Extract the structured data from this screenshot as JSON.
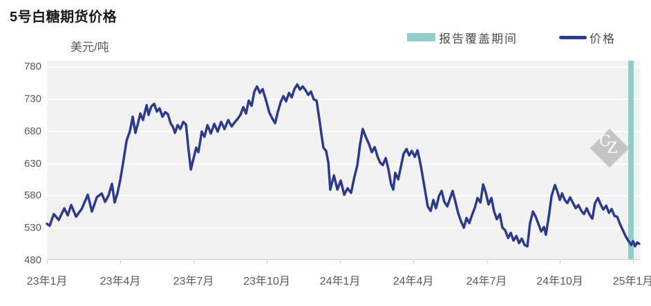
{
  "title": "5号白糖期货价格",
  "y_unit_label": "美元/吨",
  "legend": {
    "items": [
      {
        "label": "报告覆盖期间",
        "type": "bar",
        "color": "#8ecfc9"
      },
      {
        "label": "价格",
        "type": "line",
        "color": "#2b3a8d"
      }
    ]
  },
  "watermark": {
    "letter_c": "C",
    "letter_z": "Z"
  },
  "colors": {
    "line": "#2b3a8d",
    "coverage_band": "#8ecfc9",
    "plot_background": "#f2f2f2",
    "gridline": "#ffffff",
    "axis": "#c9c9c9",
    "tick_text": "#595959",
    "title_text": "#1a1a1a",
    "watermark": "#c5c5c5"
  },
  "chart_data": {
    "type": "line",
    "title": "5号白糖期货价格",
    "xlabel": "",
    "ylabel": "美元/吨",
    "grid": "horizontal-white-on-gray",
    "legend_position": "top-right",
    "x_axis": {
      "unit": "months since 2023-01",
      "range": [
        0,
        24.28
      ],
      "tick_positions": [
        0,
        3,
        6,
        9,
        12,
        15,
        18,
        21,
        24
      ],
      "tick_labels": [
        "23年1月",
        "23年4月",
        "23年7月",
        "23年10月",
        "24年1月",
        "24年4月",
        "24年7月",
        "24年10月",
        "25年1月"
      ]
    },
    "y_axis": {
      "ticks": [
        480,
        530,
        580,
        630,
        680,
        730,
        780
      ],
      "range": [
        480,
        790
      ]
    },
    "coverage_band": {
      "label": "报告覆盖期间",
      "x_start": 23.8,
      "x_end": 24.03
    },
    "series": [
      {
        "name": "价格",
        "color": "#2b3a8d",
        "points": [
          [
            0,
            537
          ],
          [
            0.11,
            534
          ],
          [
            0.28,
            552
          ],
          [
            0.48,
            543
          ],
          [
            0.71,
            561
          ],
          [
            0.85,
            550
          ],
          [
            0.99,
            566
          ],
          [
            1.19,
            548
          ],
          [
            1.42,
            560
          ],
          [
            1.67,
            582
          ],
          [
            1.84,
            556
          ],
          [
            2.04,
            578
          ],
          [
            2.24,
            584
          ],
          [
            2.38,
            571
          ],
          [
            2.52,
            581
          ],
          [
            2.66,
            599
          ],
          [
            2.77,
            570
          ],
          [
            2.89,
            585
          ],
          [
            3.0,
            605
          ],
          [
            3.11,
            630
          ],
          [
            3.26,
            666
          ],
          [
            3.4,
            681
          ],
          [
            3.51,
            703
          ],
          [
            3.62,
            678
          ],
          [
            3.74,
            695
          ],
          [
            3.82,
            708
          ],
          [
            3.93,
            698
          ],
          [
            4.08,
            721
          ],
          [
            4.16,
            706
          ],
          [
            4.27,
            719
          ],
          [
            4.39,
            723
          ],
          [
            4.5,
            711
          ],
          [
            4.61,
            716
          ],
          [
            4.73,
            703
          ],
          [
            4.84,
            710
          ],
          [
            4.95,
            707
          ],
          [
            5.07,
            692
          ],
          [
            5.15,
            688
          ],
          [
            5.24,
            678
          ],
          [
            5.35,
            690
          ],
          [
            5.46,
            684
          ],
          [
            5.58,
            695
          ],
          [
            5.69,
            691
          ],
          [
            5.8,
            650
          ],
          [
            5.89,
            621
          ],
          [
            6.0,
            638
          ],
          [
            6.11,
            655
          ],
          [
            6.2,
            648
          ],
          [
            6.34,
            680
          ],
          [
            6.45,
            672
          ],
          [
            6.57,
            690
          ],
          [
            6.71,
            677
          ],
          [
            6.85,
            692
          ],
          [
            6.99,
            680
          ],
          [
            7.13,
            695
          ],
          [
            7.27,
            684
          ],
          [
            7.42,
            698
          ],
          [
            7.56,
            688
          ],
          [
            7.7,
            695
          ],
          [
            7.81,
            700
          ],
          [
            7.92,
            706
          ],
          [
            8.04,
            718
          ],
          [
            8.15,
            708
          ],
          [
            8.26,
            728
          ],
          [
            8.38,
            720
          ],
          [
            8.49,
            742
          ],
          [
            8.6,
            750
          ],
          [
            8.72,
            740
          ],
          [
            8.83,
            746
          ],
          [
            8.97,
            728
          ],
          [
            9.11,
            709
          ],
          [
            9.23,
            700
          ],
          [
            9.34,
            693
          ],
          [
            9.45,
            710
          ],
          [
            9.57,
            726
          ],
          [
            9.68,
            735
          ],
          [
            9.79,
            727
          ],
          [
            9.91,
            740
          ],
          [
            10.02,
            733
          ],
          [
            10.13,
            746
          ],
          [
            10.25,
            753
          ],
          [
            10.36,
            745
          ],
          [
            10.47,
            750
          ],
          [
            10.59,
            744
          ],
          [
            10.7,
            737
          ],
          [
            10.81,
            742
          ],
          [
            10.92,
            730
          ],
          [
            11.04,
            728
          ],
          [
            11.15,
            700
          ],
          [
            11.24,
            675
          ],
          [
            11.32,
            655
          ],
          [
            11.43,
            650
          ],
          [
            11.52,
            632
          ],
          [
            11.6,
            590
          ],
          [
            11.75,
            612
          ],
          [
            11.89,
            590
          ],
          [
            12.03,
            604
          ],
          [
            12.17,
            582
          ],
          [
            12.31,
            592
          ],
          [
            12.45,
            585
          ],
          [
            12.59,
            610
          ],
          [
            12.71,
            628
          ],
          [
            12.82,
            660
          ],
          [
            12.93,
            684
          ],
          [
            13.05,
            672
          ],
          [
            13.19,
            660
          ],
          [
            13.3,
            648
          ],
          [
            13.42,
            656
          ],
          [
            13.53,
            642
          ],
          [
            13.64,
            632
          ],
          [
            13.75,
            628
          ],
          [
            13.87,
            639
          ],
          [
            13.98,
            622
          ],
          [
            14.09,
            598
          ],
          [
            14.18,
            590
          ],
          [
            14.26,
            616
          ],
          [
            14.38,
            606
          ],
          [
            14.49,
            625
          ],
          [
            14.6,
            645
          ],
          [
            14.72,
            653
          ],
          [
            14.83,
            643
          ],
          [
            14.94,
            650
          ],
          [
            15.06,
            641
          ],
          [
            15.17,
            651
          ],
          [
            15.25,
            638
          ],
          [
            15.34,
            620
          ],
          [
            15.42,
            602
          ],
          [
            15.51,
            582
          ],
          [
            15.59,
            564
          ],
          [
            15.71,
            557
          ],
          [
            15.82,
            574
          ],
          [
            15.93,
            561
          ],
          [
            16.05,
            580
          ],
          [
            16.16,
            588
          ],
          [
            16.27,
            571
          ],
          [
            16.39,
            564
          ],
          [
            16.5,
            576
          ],
          [
            16.61,
            588
          ],
          [
            16.73,
            570
          ],
          [
            16.84,
            553
          ],
          [
            16.95,
            541
          ],
          [
            17.07,
            531
          ],
          [
            17.18,
            546
          ],
          [
            17.29,
            538
          ],
          [
            17.41,
            551
          ],
          [
            17.52,
            562
          ],
          [
            17.63,
            577
          ],
          [
            17.75,
            570
          ],
          [
            17.86,
            598
          ],
          [
            17.97,
            585
          ],
          [
            18.08,
            567
          ],
          [
            18.2,
            577
          ],
          [
            18.31,
            556
          ],
          [
            18.42,
            544
          ],
          [
            18.54,
            552
          ],
          [
            18.65,
            531
          ],
          [
            18.76,
            527
          ],
          [
            18.88,
            515
          ],
          [
            18.99,
            523
          ],
          [
            19.1,
            511
          ],
          [
            19.22,
            518
          ],
          [
            19.33,
            507
          ],
          [
            19.44,
            514
          ],
          [
            19.56,
            504
          ],
          [
            19.67,
            502
          ],
          [
            19.78,
            538
          ],
          [
            19.9,
            556
          ],
          [
            20.01,
            548
          ],
          [
            20.12,
            537
          ],
          [
            20.24,
            525
          ],
          [
            20.35,
            532
          ],
          [
            20.43,
            520
          ],
          [
            20.55,
            549
          ],
          [
            20.66,
            580
          ],
          [
            20.8,
            597
          ],
          [
            20.89,
            588
          ],
          [
            21.0,
            574
          ],
          [
            21.09,
            584
          ],
          [
            21.2,
            574
          ],
          [
            21.31,
            569
          ],
          [
            21.42,
            578
          ],
          [
            21.54,
            569
          ],
          [
            21.65,
            561
          ],
          [
            21.76,
            566
          ],
          [
            21.88,
            557
          ],
          [
            21.99,
            552
          ],
          [
            22.1,
            561
          ],
          [
            22.22,
            551
          ],
          [
            22.33,
            545
          ],
          [
            22.44,
            569
          ],
          [
            22.56,
            577
          ],
          [
            22.67,
            567
          ],
          [
            22.78,
            559
          ],
          [
            22.9,
            565
          ],
          [
            23.01,
            554
          ],
          [
            23.12,
            560
          ],
          [
            23.24,
            549
          ],
          [
            23.35,
            548
          ],
          [
            23.46,
            537
          ],
          [
            23.58,
            527
          ],
          [
            23.69,
            518
          ],
          [
            23.8,
            511
          ],
          [
            23.92,
            504
          ],
          [
            24.0,
            510
          ],
          [
            24.08,
            502
          ],
          [
            24.17,
            508
          ],
          [
            24.25,
            506
          ]
        ]
      }
    ]
  }
}
